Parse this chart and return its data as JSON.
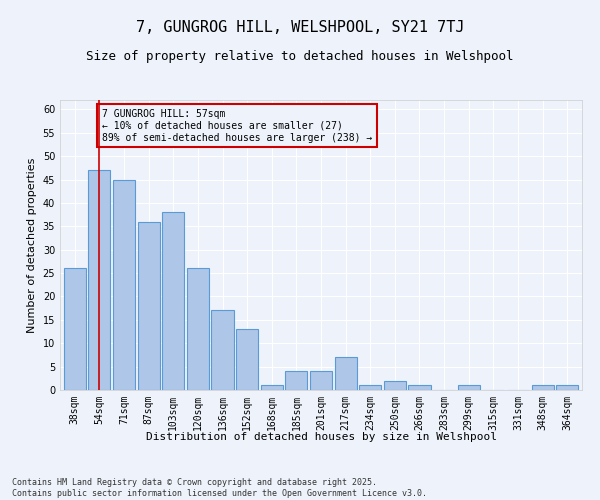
{
  "title": "7, GUNGROG HILL, WELSHPOOL, SY21 7TJ",
  "subtitle": "Size of property relative to detached houses in Welshpool",
  "xlabel": "Distribution of detached houses by size in Welshpool",
  "ylabel": "Number of detached properties",
  "categories": [
    "38sqm",
    "54sqm",
    "71sqm",
    "87sqm",
    "103sqm",
    "120sqm",
    "136sqm",
    "152sqm",
    "168sqm",
    "185sqm",
    "201sqm",
    "217sqm",
    "234sqm",
    "250sqm",
    "266sqm",
    "283sqm",
    "299sqm",
    "315sqm",
    "331sqm",
    "348sqm",
    "364sqm"
  ],
  "values": [
    26,
    47,
    45,
    36,
    38,
    26,
    17,
    13,
    1,
    4,
    4,
    7,
    1,
    2,
    1,
    0,
    1,
    0,
    0,
    1,
    1
  ],
  "bar_color": "#aec6e8",
  "bar_edge_color": "#5b9bd5",
  "background_color": "#eef3fb",
  "grid_color": "#ffffff",
  "annotation_box_text": "7 GUNGROG HILL: 57sqm\n← 10% of detached houses are smaller (27)\n89% of semi-detached houses are larger (238) →",
  "annotation_box_edge_color": "#cc0000",
  "vline_x": 1,
  "vline_color": "#cc0000",
  "ylim": [
    0,
    62
  ],
  "yticks": [
    0,
    5,
    10,
    15,
    20,
    25,
    30,
    35,
    40,
    45,
    50,
    55,
    60
  ],
  "footer": "Contains HM Land Registry data © Crown copyright and database right 2025.\nContains public sector information licensed under the Open Government Licence v3.0.",
  "title_fontsize": 11,
  "subtitle_fontsize": 9,
  "axis_label_fontsize": 8,
  "tick_fontsize": 7,
  "annotation_fontsize": 7,
  "footer_fontsize": 6
}
